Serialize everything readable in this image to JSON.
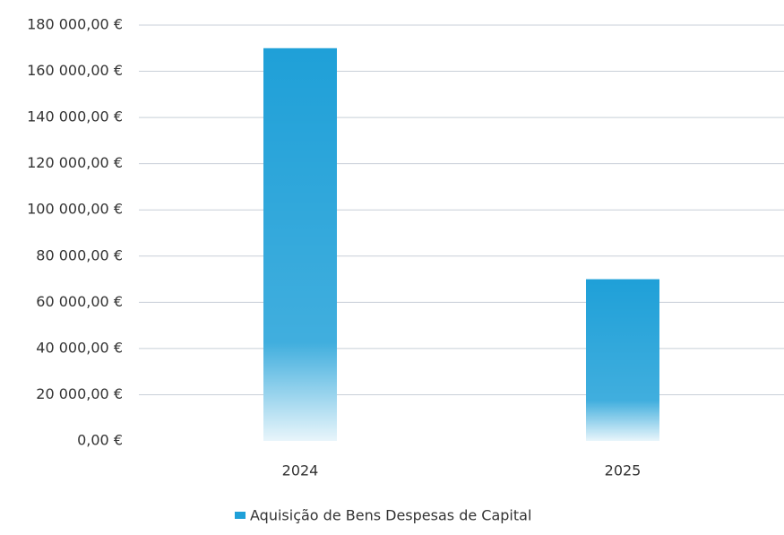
{
  "chart_data": {
    "type": "bar",
    "categories": [
      "2024",
      "2025"
    ],
    "series": [
      {
        "name": "Aquisição de Bens Despesas de Capital",
        "color": "#1fa0d8",
        "values": [
          170000,
          70000
        ]
      }
    ],
    "ylim": [
      0,
      180000
    ],
    "yticks": [
      {
        "value": 0,
        "label": "0,00 €"
      },
      {
        "value": 20000,
        "label": "20 000,00 €"
      },
      {
        "value": 40000,
        "label": "40 000,00 €"
      },
      {
        "value": 60000,
        "label": "60 000,00 €"
      },
      {
        "value": 80000,
        "label": "80 000,00 €"
      },
      {
        "value": 100000,
        "label": "100 000,00 €"
      },
      {
        "value": 120000,
        "label": "120 000,00 €"
      },
      {
        "value": 140000,
        "label": "140 000,00 €"
      },
      {
        "value": 160000,
        "label": "160 000,00 €"
      },
      {
        "value": 180000,
        "label": "180 000,00 €"
      }
    ],
    "grid": true,
    "legend": "bottom"
  }
}
